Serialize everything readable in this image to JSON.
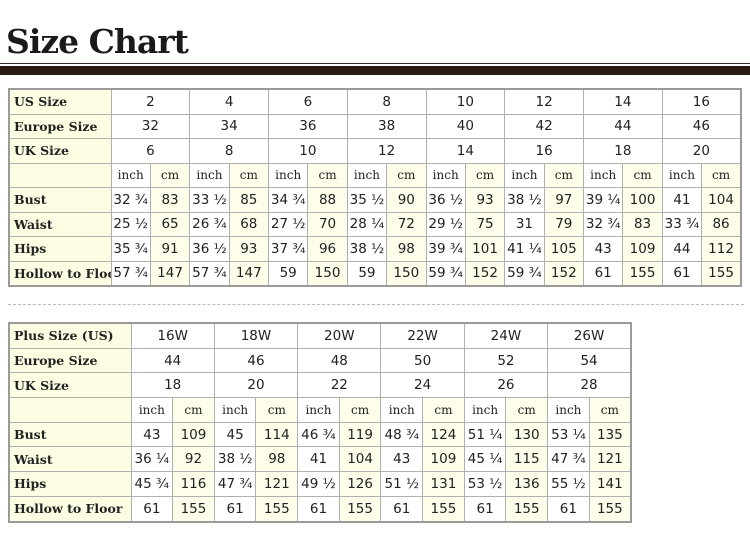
{
  "title": "Size Chart",
  "standard": {
    "rows_header": [
      {
        "label": "US Size",
        "values": [
          "2",
          "4",
          "6",
          "8",
          "10",
          "12",
          "14",
          "16"
        ]
      },
      {
        "label": "Europe Size",
        "values": [
          "32",
          "34",
          "36",
          "38",
          "40",
          "42",
          "44",
          "46"
        ]
      },
      {
        "label": "UK Size",
        "values": [
          "6",
          "8",
          "10",
          "12",
          "14",
          "16",
          "18",
          "20"
        ]
      }
    ],
    "unit_inch": "inch",
    "unit_cm": "cm",
    "measurements": [
      {
        "label": "Bust",
        "values": [
          "32 ¾",
          "83",
          "33 ½",
          "85",
          "34 ¾",
          "88",
          "35 ½",
          "90",
          "36 ½",
          "93",
          "38 ½",
          "97",
          "39 ¼",
          "100",
          "41",
          "104"
        ]
      },
      {
        "label": "Waist",
        "values": [
          "25 ½",
          "65",
          "26 ¾",
          "68",
          "27 ½",
          "70",
          "28 ¼",
          "72",
          "29 ½",
          "75",
          "31",
          "79",
          "32 ¾",
          "83",
          "33 ¾",
          "86"
        ]
      },
      {
        "label": "Hips",
        "values": [
          "35 ¾",
          "91",
          "36 ½",
          "93",
          "37 ¾",
          "96",
          "38 ½",
          "98",
          "39 ¾",
          "101",
          "41 ¼",
          "105",
          "43",
          "109",
          "44",
          "112"
        ]
      },
      {
        "label": "Hollow to Floor",
        "values": [
          "57 ¾",
          "147",
          "57 ¾",
          "147",
          "59",
          "150",
          "59",
          "150",
          "59 ¾",
          "152",
          "59 ¾",
          "152",
          "61",
          "155",
          "61",
          "155"
        ]
      }
    ]
  },
  "plus": {
    "rows_header": [
      {
        "label": "Plus Size (US)",
        "values": [
          "16W",
          "18W",
          "20W",
          "22W",
          "24W",
          "26W"
        ]
      },
      {
        "label": "Europe Size",
        "values": [
          "44",
          "46",
          "48",
          "50",
          "52",
          "54"
        ]
      },
      {
        "label": "UK Size",
        "values": [
          "18",
          "20",
          "22",
          "24",
          "26",
          "28"
        ]
      }
    ],
    "unit_inch": "inch",
    "unit_cm": "cm",
    "measurements": [
      {
        "label": "Bust",
        "values": [
          "43",
          "109",
          "45",
          "114",
          "46 ¾",
          "119",
          "48 ¾",
          "124",
          "51 ¼",
          "130",
          "53 ¼",
          "135"
        ]
      },
      {
        "label": "Waist",
        "values": [
          "36 ¼",
          "92",
          "38 ½",
          "98",
          "41",
          "104",
          "43",
          "109",
          "45 ¼",
          "115",
          "47 ¾",
          "121"
        ]
      },
      {
        "label": "Hips",
        "values": [
          "45 ¾",
          "116",
          "47 ¾",
          "121",
          "49 ½",
          "126",
          "51 ½",
          "131",
          "53 ½",
          "136",
          "55 ½",
          "141"
        ]
      },
      {
        "label": "Hollow to Floor",
        "values": [
          "61",
          "155",
          "61",
          "155",
          "61",
          "155",
          "61",
          "155",
          "61",
          "155",
          "61",
          "155"
        ]
      }
    ]
  }
}
